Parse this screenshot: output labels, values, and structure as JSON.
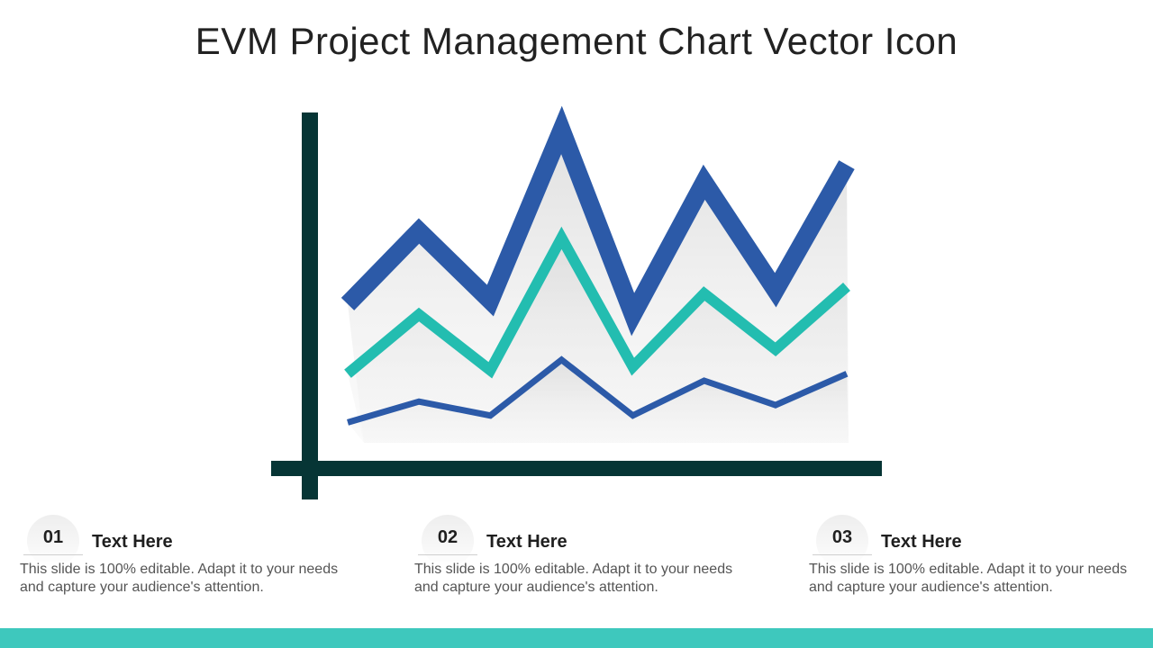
{
  "title": "EVM Project Management Chart Vector Icon",
  "colors": {
    "axis": "#063535",
    "series_top": "#2c5aa8",
    "series_middle": "#23bdb0",
    "series_bottom": "#2c5aa8",
    "bottom_bar": "#3ec8bd"
  },
  "chart_data": {
    "type": "line",
    "title": "",
    "xlabel": "",
    "ylabel": "",
    "x": [
      1,
      2,
      3,
      4,
      5,
      6,
      7,
      8
    ],
    "ylim": [
      0,
      100
    ],
    "grid": false,
    "series": [
      {
        "values": [
          45,
          66,
          46,
          95,
          42,
          80,
          49,
          85
        ]
      },
      {
        "values": [
          25,
          42,
          26,
          64,
          27,
          48,
          32,
          50
        ]
      },
      {
        "values": [
          11,
          17,
          13,
          29,
          13,
          23,
          16,
          25
        ]
      }
    ]
  },
  "items": [
    {
      "number": "01",
      "title": "Text Here",
      "body": "This slide  is 100% editable. Adapt it to your needs and capture your audience's attention."
    },
    {
      "number": "02",
      "title": "Text Here",
      "body": "This slide  is 100% editable. Adapt it to your needs and capture your audience's attention."
    },
    {
      "number": "03",
      "title": "Text Here",
      "body": "This slide  is 100% editable. Adapt it to your needs and capture your audience's attention."
    }
  ]
}
